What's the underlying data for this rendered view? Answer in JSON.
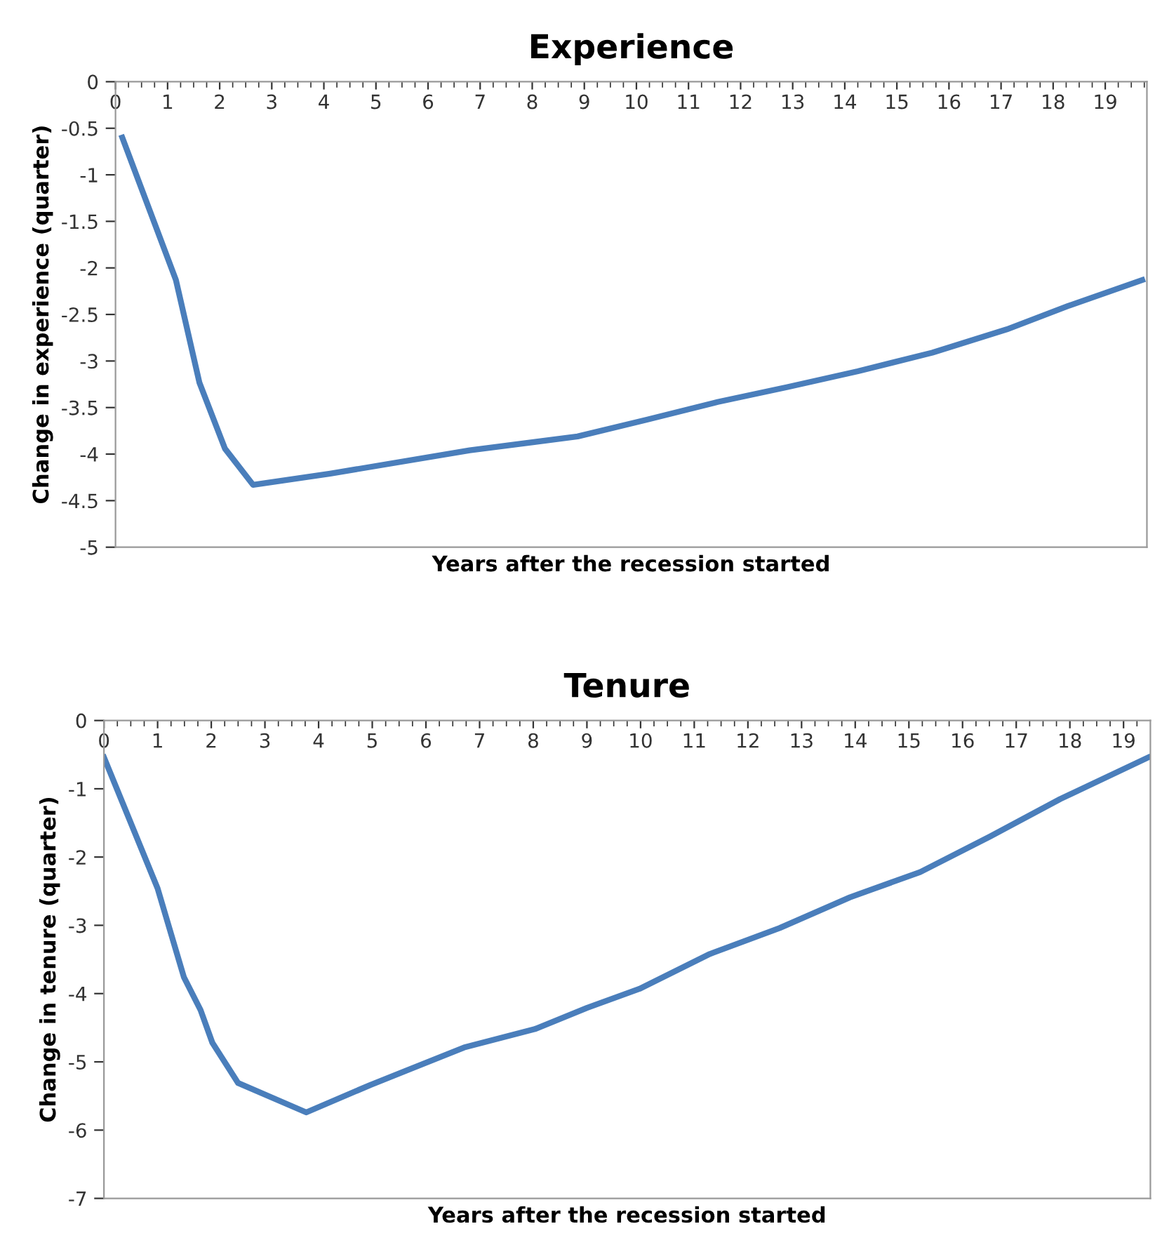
{
  "chart_data": [
    {
      "type": "line",
      "title": "Experience",
      "xlabel": "Years after the recession started",
      "ylabel": "Change in experience (quarter)",
      "x": [
        0.13,
        1.16,
        1.61,
        2.1,
        2.64,
        4.12,
        6.8,
        8.87,
        10.2,
        11.56,
        12.9,
        14.25,
        15.68,
        17.11,
        18.28,
        19.71
      ],
      "series": [
        {
          "color": "#4a7ebb",
          "values": [
            -0.6,
            -2.13,
            -3.23,
            -3.94,
            -4.33,
            -4.21,
            -3.96,
            -3.81,
            -3.63,
            -3.44,
            -3.28,
            -3.11,
            -2.91,
            -2.66,
            -2.41,
            -2.13
          ]
        }
      ],
      "xlim": [
        0,
        19.8
      ],
      "xticks": [
        0,
        1,
        2,
        3,
        4,
        5,
        6,
        7,
        8,
        9,
        10,
        11,
        12,
        13,
        14,
        15,
        16,
        17,
        18,
        19
      ],
      "ylim": [
        -5,
        0
      ],
      "yticks": [
        -5,
        -4.5,
        -4,
        -3.5,
        -3,
        -2.5,
        -2,
        -1.5,
        -1,
        -0.5,
        0
      ],
      "grid": false,
      "legend": false,
      "marker": "none",
      "line_style": "solid"
    },
    {
      "type": "line",
      "title": "Tenure",
      "xlabel": "Years after the recession started",
      "ylabel": "Change in tenure (quarter)",
      "x": [
        0,
        1.0,
        1.49,
        1.8,
        2.02,
        2.5,
        3.77,
        4.96,
        6.71,
        8.03,
        9.0,
        9.98,
        11.29,
        12.59,
        13.9,
        15.21,
        16.51,
        17.82,
        19.46
      ],
      "series": [
        {
          "color": "#4a7ebb",
          "values": [
            -0.54,
            -2.46,
            -3.76,
            -4.24,
            -4.72,
            -5.31,
            -5.74,
            -5.34,
            -4.79,
            -4.52,
            -4.21,
            -3.93,
            -3.42,
            -3.04,
            -2.59,
            -2.22,
            -1.7,
            -1.15,
            -0.54
          ]
        }
      ],
      "xlim": [
        0,
        19.5
      ],
      "xticks": [
        0,
        1,
        2,
        3,
        4,
        5,
        6,
        7,
        8,
        9,
        10,
        11,
        12,
        13,
        14,
        15,
        16,
        17,
        18,
        19
      ],
      "ylim": [
        -7,
        0
      ],
      "yticks": [
        -7,
        -6,
        -5,
        -4,
        -3,
        -2,
        -1,
        0
      ],
      "grid": false,
      "legend": false,
      "marker": "none",
      "line_style": "solid"
    }
  ]
}
